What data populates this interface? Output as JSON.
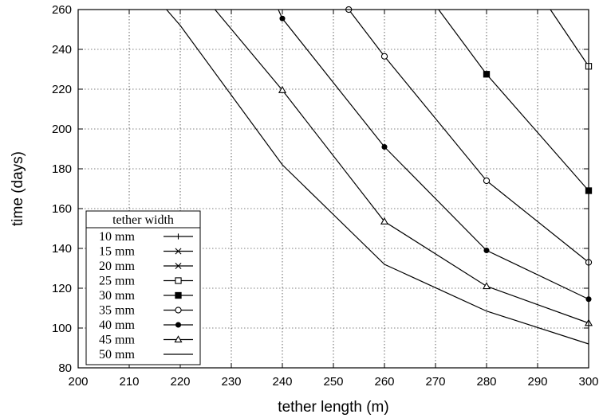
{
  "chart_data": {
    "type": "line",
    "xlabel": "tether length (m)",
    "ylabel": "time (days)",
    "xlim": [
      200,
      300
    ],
    "ylim": [
      80,
      260
    ],
    "x_ticks": [
      200,
      210,
      220,
      230,
      240,
      250,
      260,
      270,
      280,
      290,
      300
    ],
    "y_ticks": [
      80,
      100,
      120,
      140,
      160,
      180,
      200,
      220,
      240,
      260
    ],
    "grid": true,
    "legend": {
      "title": "tether width",
      "placement": "bottom-left"
    },
    "series": [
      {
        "name": "10 mm",
        "marker": "plus",
        "x": [],
        "y": []
      },
      {
        "name": "15 mm",
        "marker": "cross",
        "x": [],
        "y": []
      },
      {
        "name": "20 mm",
        "marker": "star",
        "x": [],
        "y": []
      },
      {
        "name": "25 mm",
        "marker": "open-square",
        "x": [
          292.5,
          300
        ],
        "y": [
          260,
          231.5
        ]
      },
      {
        "name": "30 mm",
        "marker": "filled-square",
        "x": [
          270.6,
          280,
          300
        ],
        "y": [
          260,
          227.5,
          169
        ]
      },
      {
        "name": "35 mm",
        "marker": "open-circle",
        "x": [
          253,
          260,
          280,
          300
        ],
        "y": [
          260,
          236.5,
          174,
          133
        ]
      },
      {
        "name": "40 mm",
        "marker": "filled-circle",
        "x": [
          239.2,
          240,
          260,
          280,
          300
        ],
        "y": [
          260,
          255.5,
          191,
          139,
          114.5
        ]
      },
      {
        "name": "45 mm",
        "marker": "open-triangle",
        "x": [
          226.8,
          240,
          260,
          280,
          300
        ],
        "y": [
          260,
          219.5,
          153.5,
          121,
          102.5
        ]
      },
      {
        "name": "50 mm",
        "marker": "none",
        "x": [
          217.3,
          220,
          240,
          260,
          280,
          300
        ],
        "y": [
          260,
          252,
          182,
          132,
          108.5,
          92
        ]
      }
    ]
  }
}
